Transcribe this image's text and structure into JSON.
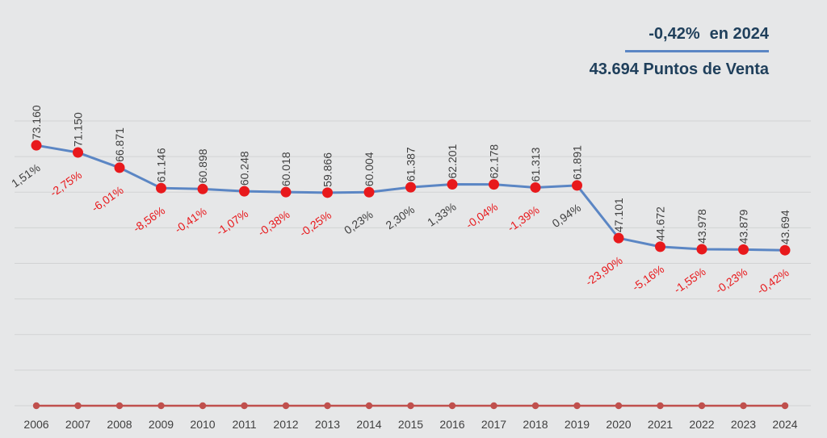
{
  "headline": {
    "change": "-0,42%",
    "year": "en 2024",
    "points": "43.694 Puntos de Venta"
  },
  "colors": {
    "background": "#e6e7e8",
    "line": "#5b86c4",
    "marker": "#e8191c",
    "baseline": "#c0504d",
    "positive_label": "#404040",
    "negative_label": "#e8191c",
    "headline": "#1f3f5b"
  },
  "chart_data": {
    "type": "line",
    "x": [
      "2006",
      "2007",
      "2008",
      "2009",
      "2010",
      "2011",
      "2012",
      "2013",
      "2014",
      "2015",
      "2016",
      "2017",
      "2018",
      "2019",
      "2020",
      "2021",
      "2022",
      "2023",
      "2024"
    ],
    "series": [
      {
        "values": [
          73160,
          71150,
          66871,
          61146,
          60898,
          60248,
          60018,
          59866,
          60004,
          61387,
          62201,
          62178,
          61313,
          61891,
          47101,
          44672,
          43978,
          43879,
          43694
        ],
        "value_labels": [
          "73.160",
          "71.150",
          "66.871",
          "61.146",
          "60.898",
          "60.248",
          "60.018",
          "59.866",
          "60.004",
          "61.387",
          "62.201",
          "62.178",
          "61.313",
          "61.891",
          "47.101",
          "44.672",
          "43.978",
          "43.879",
          "43.694"
        ],
        "pct_labels": [
          "1,51%",
          "-2,75%",
          "-6,01%",
          "-8,56%",
          "-0,41%",
          "-1,07%",
          "-0,38%",
          "-0,25%",
          "0,23%",
          "2,30%",
          "1,33%",
          "-0,04%",
          "-1,39%",
          "0,94%",
          "-23,90%",
          "-5,16%",
          "-1,55%",
          "-0,23%",
          "-0,42%"
        ],
        "pct_values": [
          1.51,
          -2.75,
          -6.01,
          -8.56,
          -0.41,
          -1.07,
          -0.38,
          -0.25,
          0.23,
          2.3,
          1.33,
          -0.04,
          -1.39,
          0.94,
          -23.9,
          -5.16,
          -1.55,
          -0.23,
          -0.42
        ]
      },
      {
        "values": [
          0,
          0,
          0,
          0,
          0,
          0,
          0,
          0,
          0,
          0,
          0,
          0,
          0,
          0,
          0,
          0,
          0,
          0,
          0
        ]
      }
    ],
    "ylim": [
      0,
      80000
    ],
    "grid": true,
    "title": "",
    "xlabel": "",
    "ylabel": ""
  }
}
